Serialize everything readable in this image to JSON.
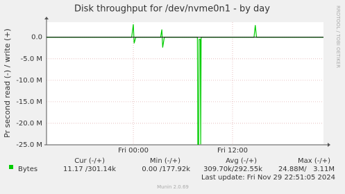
{
  "chart_data": {
    "type": "line",
    "title": "Disk throughput for /dev/nvme0n1 - by day",
    "y_label": "Pr second read (-) / write (+)",
    "side_text": "RRDTOOL / TOBI OETIKER",
    "xlim": [
      -10.5,
      23
    ],
    "ylim": [
      -25000000,
      3500000
    ],
    "xticks": [
      {
        "value": 0,
        "label": "Fri 00:00"
      },
      {
        "value": 12,
        "label": "Fri 12:00"
      }
    ],
    "yticks": [
      {
        "value": 0,
        "label": "0.0"
      },
      {
        "value": -5000000,
        "label": "-5.0 M"
      },
      {
        "value": -10000000,
        "label": "-10.0 M"
      },
      {
        "value": -15000000,
        "label": "-15.0 M"
      },
      {
        "value": -20000000,
        "label": "-20.0 M"
      },
      {
        "value": -25000000,
        "label": "-25.0 M"
      }
    ],
    "grid": true,
    "series": [
      {
        "name": "Bytes",
        "color": "#00cc00",
        "x": [
          -10.5,
          -0.2,
          0,
          0.1,
          0.3,
          3.3,
          3.45,
          3.55,
          3.75,
          7.75,
          7.8,
          7.9,
          7.95,
          8.1,
          8.15,
          8.2,
          14.6,
          14.75,
          14.9,
          23
        ],
        "values": [
          0,
          0,
          3000000,
          -1400000,
          0,
          0,
          1800000,
          -2400000,
          0,
          0,
          -24880000,
          -24880000,
          -500000,
          -500000,
          -24880000,
          0,
          0,
          2800000,
          0,
          0
        ]
      }
    ],
    "legend_table": {
      "headers": [
        "Cur (-/+)",
        "Min (-/+)",
        "Avg (-/+)",
        "Max (-/+)"
      ],
      "cells": [
        "11.17 /301.14k",
        "0.00 /177.92k",
        "309.70k/292.55k",
        "24.88M/   3.11M"
      ]
    },
    "last_update": "Last update: Fri Nov 29 22:51:05 2024",
    "footer": "Munin 2.0.69"
  }
}
